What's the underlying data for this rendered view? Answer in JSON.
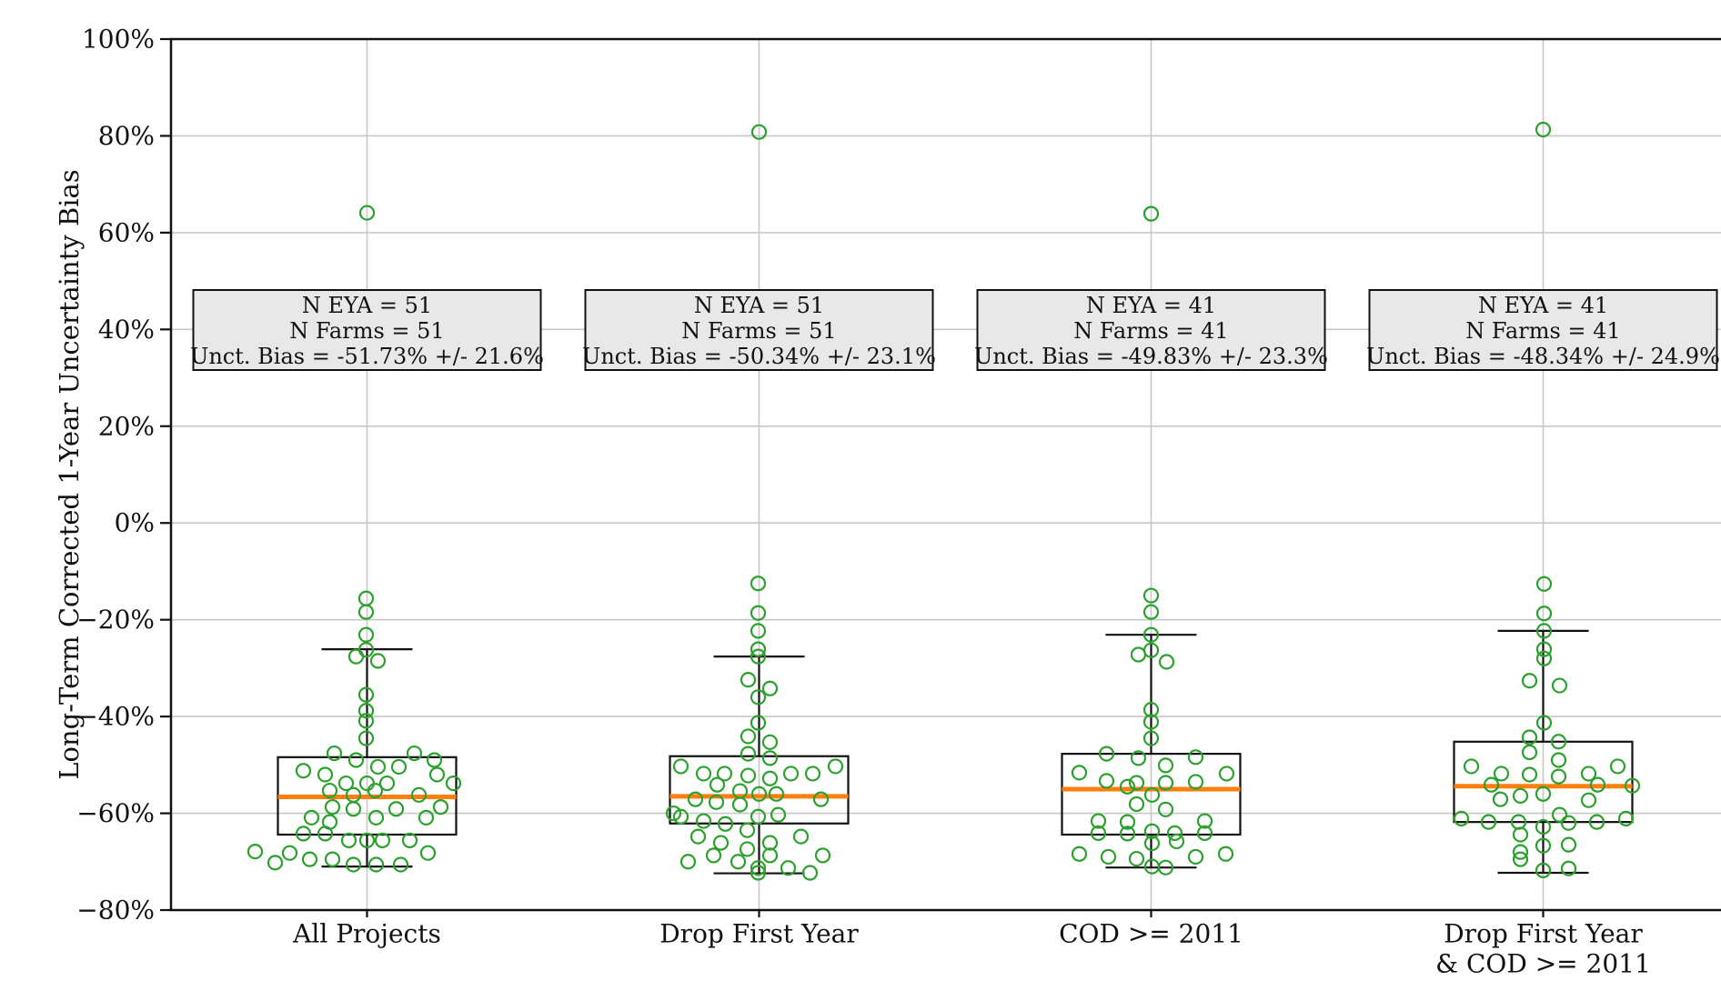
{
  "figure": {
    "background": "#ffffff"
  },
  "chart_data": {
    "type": "box",
    "title": "",
    "xlabel": "",
    "ylabel": "Long-Term Corrected 1-Year Uncertainty Bias",
    "ylim": [
      -80,
      100
    ],
    "yticks": [
      100,
      80,
      60,
      40,
      20,
      0,
      -20,
      -40,
      -60,
      -80
    ],
    "ytick_labels": [
      "100%",
      "80%",
      "60%",
      "40%",
      "20%",
      "0%",
      "−20%",
      "−40%",
      "−60%",
      "−80%"
    ],
    "grid": true,
    "legend_position": "none",
    "categories": [
      {
        "label_lines": [
          "All Projects"
        ]
      },
      {
        "label_lines": [
          "Drop First Year"
        ]
      },
      {
        "label_lines": [
          "COD >= 2011"
        ]
      },
      {
        "label_lines": [
          "Drop First Year",
          "& COD >= 2011"
        ]
      }
    ],
    "series": [
      {
        "name": "All Projects",
        "n_eya": 51,
        "n_farms": 51,
        "unct_bias": "-51.73% +/- 21.6%",
        "annotation_lines": [
          "N EYA = 51",
          "N Farms = 51",
          "Unct. Bias = -51.73% +/- 21.6%"
        ],
        "box": {
          "whisker_high": -26.1,
          "q3": -48.4,
          "median": -56.6,
          "q1": -64.4,
          "whisker_low": -71.0
        },
        "outliers": [
          64.1
        ],
        "points": [
          [
            -1,
            -15.6
          ],
          [
            -1,
            -18.4
          ],
          [
            -1,
            -23.1
          ],
          [
            -1,
            -26.2
          ],
          [
            -12,
            -27.6
          ],
          [
            12,
            -28.5
          ],
          [
            -1,
            -35.5
          ],
          [
            -1,
            -38.8
          ],
          [
            -1,
            -40.9
          ],
          [
            -1,
            -44.5
          ],
          [
            -36,
            -47.6
          ],
          [
            52,
            -47.6
          ],
          [
            -12,
            -49.0
          ],
          [
            74,
            -49.0
          ],
          [
            12,
            -50.4
          ],
          [
            35,
            -50.4
          ],
          [
            -70,
            -51.2
          ],
          [
            -46,
            -52.0
          ],
          [
            77,
            -52.0
          ],
          [
            -23,
            -53.8
          ],
          [
            0,
            -53.8
          ],
          [
            22,
            -53.8
          ],
          [
            95,
            -53.8
          ],
          [
            -41,
            -55.3
          ],
          [
            9,
            -55.3
          ],
          [
            -15,
            -56.2
          ],
          [
            57,
            -56.2
          ],
          [
            -38,
            -58.7
          ],
          [
            81,
            -58.7
          ],
          [
            -15,
            -59.1
          ],
          [
            32,
            -59.1
          ],
          [
            -61,
            -60.9
          ],
          [
            10,
            -60.9
          ],
          [
            65,
            -60.9
          ],
          [
            -41,
            -61.8
          ],
          [
            -70,
            -64.2
          ],
          [
            -46,
            -64.2
          ],
          [
            -20,
            -65.6
          ],
          [
            0,
            -65.6
          ],
          [
            17,
            -65.6
          ],
          [
            47,
            -65.6
          ],
          [
            -123,
            -67.9
          ],
          [
            -85,
            -68.2
          ],
          [
            67,
            -68.2
          ],
          [
            -101,
            -70.2
          ],
          [
            -63,
            -69.5
          ],
          [
            -38,
            -69.5
          ],
          [
            -15,
            -70.6
          ],
          [
            10,
            -70.6
          ],
          [
            37,
            -70.6
          ]
        ]
      },
      {
        "name": "Drop First Year",
        "n_eya": 51,
        "n_farms": 51,
        "unct_bias": "-50.34% +/- 23.1%",
        "annotation_lines": [
          "N EYA = 51",
          "N Farms = 51",
          "Unct. Bias = -50.34% +/- 23.1%"
        ],
        "box": {
          "whisker_high": -27.6,
          "q3": -48.2,
          "median": -56.5,
          "q1": -62.1,
          "whisker_low": -72.4
        },
        "outliers": [
          80.8
        ],
        "points": [
          [
            -1,
            -12.5
          ],
          [
            -1,
            -18.6
          ],
          [
            -1,
            -22.3
          ],
          [
            -1,
            -26.1
          ],
          [
            -1,
            -27.6
          ],
          [
            -12,
            -32.4
          ],
          [
            12,
            -34.2
          ],
          [
            -1,
            -36.0
          ],
          [
            -1,
            -41.3
          ],
          [
            -12,
            -44.1
          ],
          [
            12,
            -45.3
          ],
          [
            -12,
            -47.7
          ],
          [
            12,
            -48.6
          ],
          [
            -86,
            -50.3
          ],
          [
            84,
            -50.3
          ],
          [
            -61,
            -51.8
          ],
          [
            -38,
            -51.8
          ],
          [
            35,
            -51.8
          ],
          [
            59,
            -51.8
          ],
          [
            -12,
            -52.2
          ],
          [
            12,
            -52.8
          ],
          [
            -46,
            -54.1
          ],
          [
            -21,
            -55.4
          ],
          [
            0,
            -56.0
          ],
          [
            19,
            -56.0
          ],
          [
            -70,
            -57.1
          ],
          [
            68,
            -57.1
          ],
          [
            -47,
            -57.7
          ],
          [
            -21,
            -58.2
          ],
          [
            -94,
            -60.0
          ],
          [
            21,
            -60.3
          ],
          [
            -86,
            -60.7
          ],
          [
            -1,
            -60.7
          ],
          [
            -61,
            -61.6
          ],
          [
            -37,
            -62.2
          ],
          [
            -13,
            -63.5
          ],
          [
            -67,
            -64.8
          ],
          [
            46,
            -64.8
          ],
          [
            -42,
            -66.1
          ],
          [
            12,
            -66.1
          ],
          [
            -13,
            -67.4
          ],
          [
            -50,
            -68.7
          ],
          [
            12,
            -68.7
          ],
          [
            70,
            -68.7
          ],
          [
            -78,
            -70.0
          ],
          [
            -23,
            -70.0
          ],
          [
            -1,
            -71.3
          ],
          [
            32,
            -71.3
          ],
          [
            -1,
            -72.3
          ],
          [
            56,
            -72.3
          ]
        ]
      },
      {
        "name": "COD >= 2011",
        "n_eya": 41,
        "n_farms": 41,
        "unct_bias": "-49.83% +/- 23.3%",
        "annotation_lines": [
          "N EYA = 41",
          "N Farms = 41",
          "Unct. Bias = -49.83% +/- 23.3%"
        ],
        "box": {
          "whisker_high": -23.1,
          "q3": -47.7,
          "median": -55.0,
          "q1": -64.4,
          "whisker_low": -71.2
        },
        "outliers": [
          63.9
        ],
        "points": [
          [
            0,
            -15.0
          ],
          [
            0,
            -18.4
          ],
          [
            0,
            -23.1
          ],
          [
            0,
            -26.3
          ],
          [
            -14,
            -27.2
          ],
          [
            17,
            -28.7
          ],
          [
            0,
            -38.6
          ],
          [
            0,
            -41.1
          ],
          [
            0,
            -44.5
          ],
          [
            -49,
            -47.7
          ],
          [
            -14,
            -48.6
          ],
          [
            49,
            -48.4
          ],
          [
            16,
            -50.1
          ],
          [
            -79,
            -51.6
          ],
          [
            83,
            -51.8
          ],
          [
            -49,
            -53.3
          ],
          [
            -16,
            -53.7
          ],
          [
            16,
            -53.7
          ],
          [
            49,
            -53.5
          ],
          [
            -26,
            -54.5
          ],
          [
            1,
            -56.2
          ],
          [
            -16,
            -58.1
          ],
          [
            16,
            -59.2
          ],
          [
            -58,
            -61.6
          ],
          [
            -26,
            -61.8
          ],
          [
            59,
            -61.6
          ],
          [
            -58,
            -64.1
          ],
          [
            -26,
            -64.2
          ],
          [
            1,
            -63.7
          ],
          [
            26,
            -64.1
          ],
          [
            59,
            -64.1
          ],
          [
            28,
            -65.8
          ],
          [
            1,
            -66.2
          ],
          [
            -79,
            -68.4
          ],
          [
            -47,
            -69.0
          ],
          [
            -16,
            -69.4
          ],
          [
            49,
            -69.0
          ],
          [
            82,
            -68.4
          ],
          [
            1,
            -71.0
          ],
          [
            16,
            -71.2
          ]
        ]
      },
      {
        "name": "Drop First Year & COD >= 2011",
        "n_eya": 41,
        "n_farms": 41,
        "unct_bias": "-48.34% +/- 24.9%",
        "annotation_lines": [
          "N EYA = 41",
          "N Farms = 41",
          "Unct. Bias = -48.34% +/- 24.9%"
        ],
        "box": {
          "whisker_high": -22.3,
          "q3": -45.2,
          "median": -54.4,
          "q1": -61.8,
          "whisker_low": -72.3
        },
        "outliers": [
          81.3
        ],
        "points": [
          [
            1,
            -12.6
          ],
          [
            1,
            -18.7
          ],
          [
            1,
            -22.3
          ],
          [
            1,
            -26.1
          ],
          [
            1,
            -28.0
          ],
          [
            -15,
            -32.6
          ],
          [
            18,
            -33.6
          ],
          [
            1,
            -41.3
          ],
          [
            -15,
            -44.3
          ],
          [
            17,
            -45.2
          ],
          [
            -15,
            -47.4
          ],
          [
            17,
            -49.0
          ],
          [
            -79,
            -50.3
          ],
          [
            82,
            -50.3
          ],
          [
            -46,
            -51.8
          ],
          [
            50,
            -51.8
          ],
          [
            -57,
            -54.1
          ],
          [
            60,
            -54.1
          ],
          [
            98,
            -54.3
          ],
          [
            -15,
            -52.0
          ],
          [
            17,
            -52.4
          ],
          [
            -47,
            -57.1
          ],
          [
            -25,
            -56.4
          ],
          [
            0,
            -56.0
          ],
          [
            50,
            -57.3
          ],
          [
            18,
            -60.3
          ],
          [
            -90,
            -61.1
          ],
          [
            91,
            -61.1
          ],
          [
            -60,
            -61.8
          ],
          [
            -27,
            -61.8
          ],
          [
            59,
            -61.8
          ],
          [
            0,
            -62.8
          ],
          [
            28,
            -62.0
          ],
          [
            -25,
            -64.4
          ],
          [
            -25,
            -68.0
          ],
          [
            0,
            -66.7
          ],
          [
            28,
            -66.5
          ],
          [
            -25,
            -69.5
          ],
          [
            0,
            -71.8
          ],
          [
            28,
            -71.4
          ]
        ]
      }
    ],
    "colors": {
      "marker": "#2ca02c",
      "median": "#ff7f0e",
      "box_line": "#111111",
      "axis": "#111111",
      "grid": "#c8c8c8",
      "annotation_fill": "#e8e8e8",
      "text": "#111111",
      "background": "#ffffff"
    }
  }
}
